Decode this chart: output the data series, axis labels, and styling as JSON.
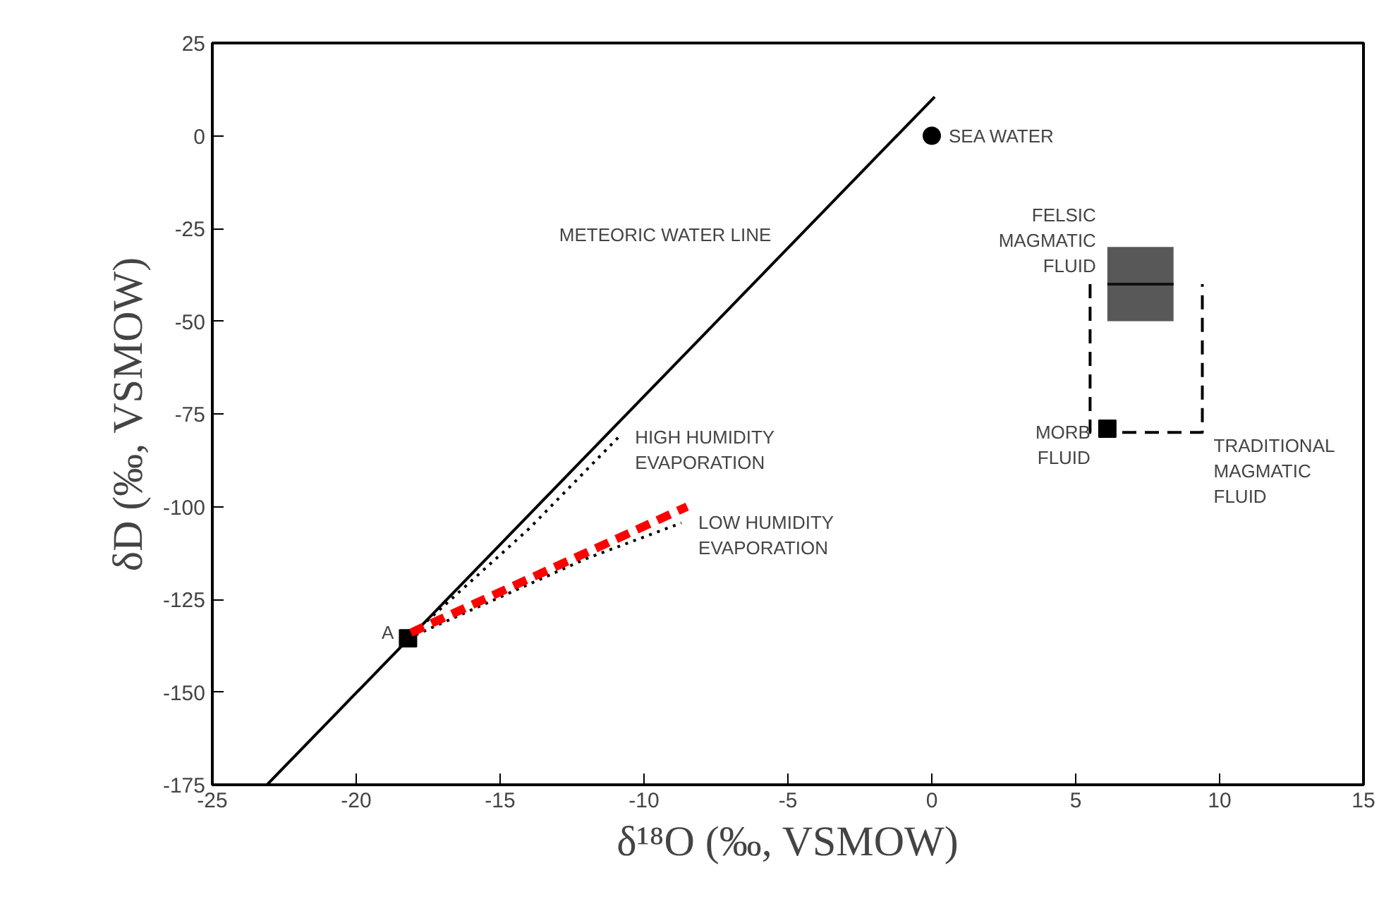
{
  "chart_data": {
    "type": "line",
    "xlabel": "δ¹⁸O (‰, VSMOW)",
    "ylabel": "δD (‰, VSMOW)",
    "xlim": [
      -25,
      15
    ],
    "ylim": [
      -175,
      25
    ],
    "xticks": [
      -25,
      -20,
      -15,
      -10,
      -5,
      0,
      5,
      10,
      15
    ],
    "yticks": [
      -175,
      -150,
      -125,
      -100,
      -75,
      -50,
      -25,
      0,
      25
    ],
    "grid": false,
    "series": [
      {
        "color": "#000000",
        "line_style": "solid",
        "x": [
          -23.1,
          0.1
        ],
        "values": [
          -175,
          10.5
        ]
      },
      {
        "type": "scatter",
        "marker": "circle",
        "color": "#000000",
        "x": [
          0
        ],
        "values": [
          0
        ]
      },
      {
        "type": "scatter",
        "marker": "square",
        "color": "#000000",
        "x": [
          -18.2
        ],
        "values": [
          -135.5
        ]
      },
      {
        "color": "#000000",
        "line_style": "dotted",
        "x": [
          -18.2,
          -14,
          -10.9
        ],
        "values": [
          -135.5,
          -106,
          -81.4
        ]
      },
      {
        "color": "#000000",
        "line_style": "dotted",
        "x": [
          -18.2,
          -12,
          -8.7
        ],
        "values": [
          -135.5,
          -114,
          -104.4
        ]
      },
      {
        "color": "#ff0000",
        "line_style": "dashed",
        "x": [
          -18.1,
          -8.5
        ],
        "values": [
          -134,
          -100
        ]
      },
      {
        "color": "#111111",
        "line_style": "solid",
        "x": [
          6.1,
          8.4
        ],
        "values": [
          -40,
          -40
        ],
        "lower": [
          -50,
          -50
        ],
        "upper": [
          -30,
          -30
        ]
      },
      {
        "color": "#000000",
        "line_style": "dashed",
        "x": [
          5.5,
          5.5,
          9.4,
          9.4
        ],
        "values": [
          -40,
          -80,
          -80,
          -40
        ]
      },
      {
        "type": "scatter",
        "marker": "square",
        "color": "#000000",
        "x": [
          6.1
        ],
        "values": [
          -79
        ]
      }
    ],
    "annotations": [
      {
        "text": "SEA WATER",
        "x": 0,
        "y": 0
      },
      {
        "text": "METEORIC WATER LINE",
        "x": -4.6,
        "y": -26.8
      },
      {
        "text": "A",
        "x": -18.2,
        "y": -135.5
      },
      {
        "text": "HIGH HUMIDITY\nEVAPORATION",
        "x": -10.9,
        "y": -81.4
      },
      {
        "text": "LOW HUMIDITY\nEVAPORATION",
        "x": -8.7,
        "y": -104.4
      },
      {
        "text": "FELSIC\nMAGMATIC\nFLUID",
        "x": 6.1,
        "y": -30
      },
      {
        "text": "MORB\nFLUID",
        "x": 6.1,
        "y": -79
      },
      {
        "text": "TRADITIONAL\nMAGMATIC\nFLUID",
        "x": 9.4,
        "y": -80
      }
    ]
  }
}
